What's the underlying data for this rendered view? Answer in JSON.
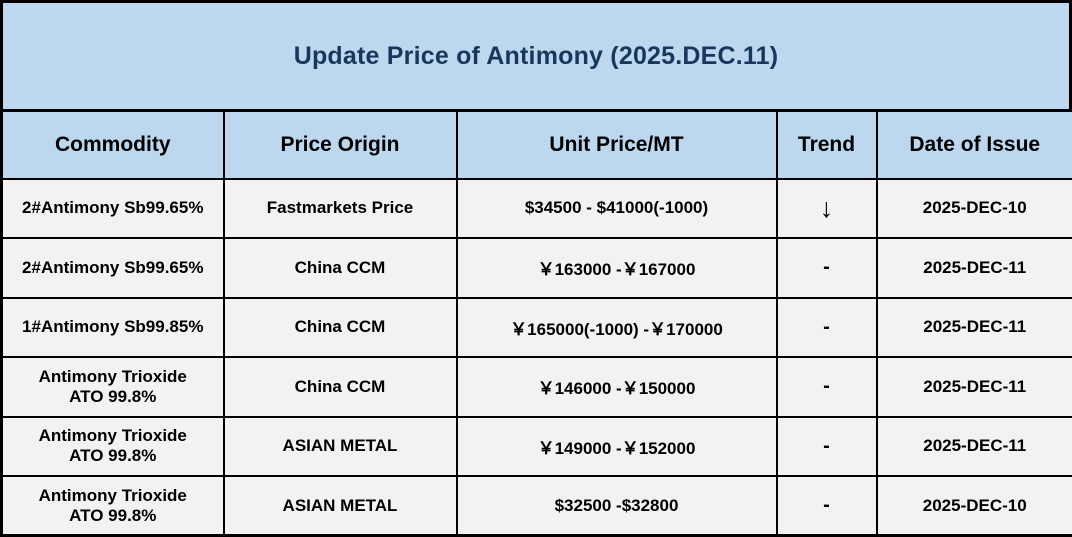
{
  "title": "Update Price of Antimony (2025.DEC.11)",
  "colors": {
    "header_bg": "#bdd7ee",
    "row_bg": "#f2f2f2",
    "border": "#000000",
    "title_text": "#17375d"
  },
  "table": {
    "columns": [
      "Commodity",
      "Price Origin",
      "Unit Price/MT",
      "Trend",
      "Date of Issue"
    ],
    "rows": [
      {
        "commodity": "2#Antimony  Sb99.65%",
        "origin": "Fastmarkets Price",
        "price": "$34500 - $41000(-1000)",
        "trend": "↓",
        "date": "2025-DEC-10"
      },
      {
        "commodity": "2#Antimony  Sb99.65%",
        "origin": "China CCM",
        "price": "￥163000 -￥167000",
        "trend": "-",
        "date": "2025-DEC-11"
      },
      {
        "commodity": "1#Antimony  Sb99.85%",
        "origin": "China CCM",
        "price": "￥165000(-1000) -￥170000",
        "trend": "-",
        "date": "2025-DEC-11"
      },
      {
        "commodity": "Antimony Trioxide\nATO 99.8%",
        "origin": "China CCM",
        "price": "￥146000 -￥150000",
        "trend": "-",
        "date": "2025-DEC-11"
      },
      {
        "commodity": "Antimony Trioxide\nATO 99.8%",
        "origin": "ASIAN METAL",
        "price": "￥149000 -￥152000",
        "trend": "-",
        "date": "2025-DEC-11"
      },
      {
        "commodity": "Antimony Trioxide\nATO 99.8%",
        "origin": "ASIAN METAL",
        "price": "$32500 -$32800",
        "trend": "-",
        "date": "2025-DEC-10"
      }
    ]
  }
}
